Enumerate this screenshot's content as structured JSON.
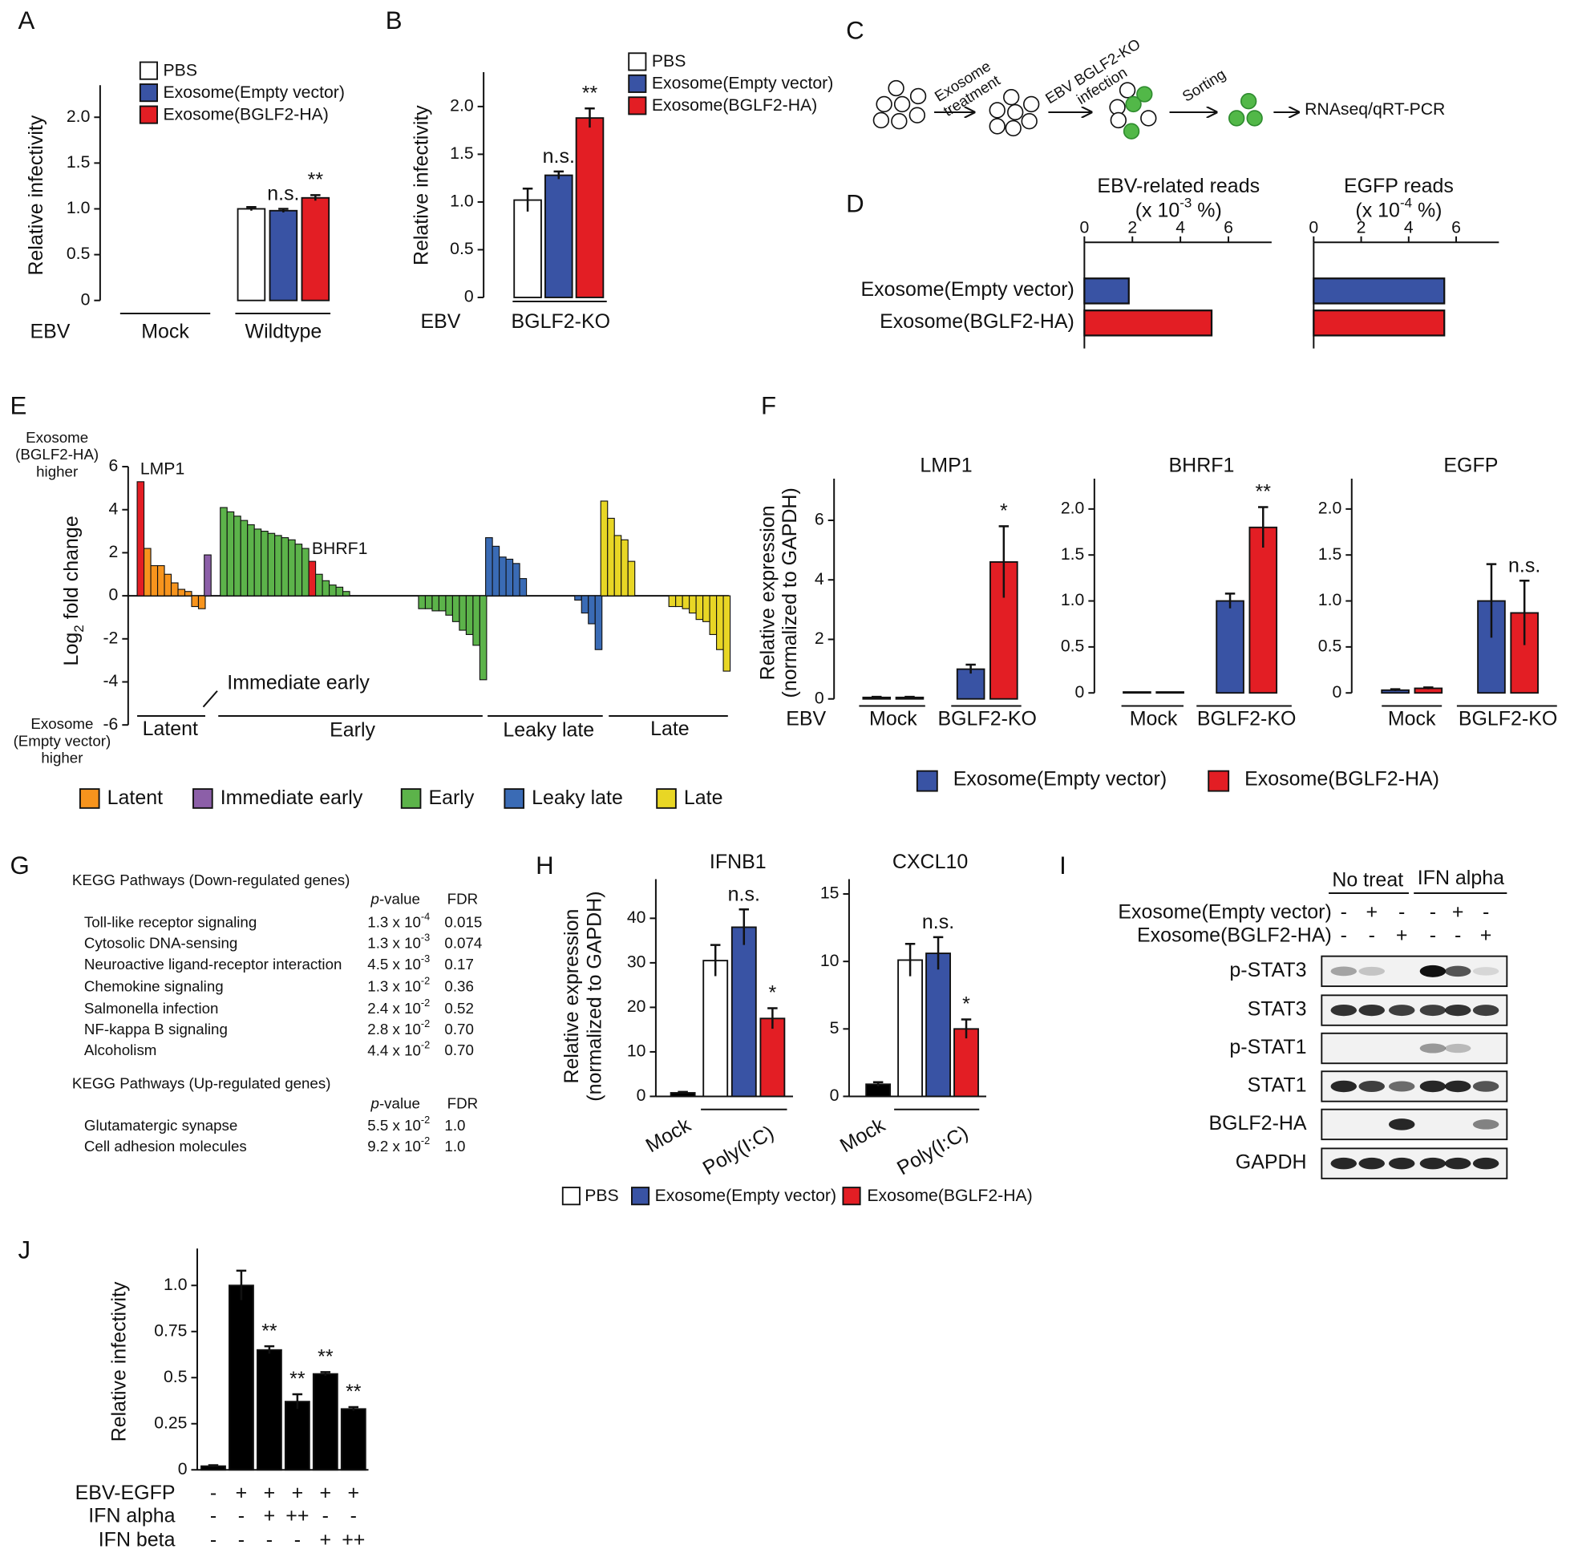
{
  "panel_labels": [
    "A",
    "B",
    "C",
    "D",
    "E",
    "F",
    "G",
    "H",
    "I",
    "J"
  ],
  "chart_data": [
    {
      "type": "bar",
      "ylabel": "Relative infectivity",
      "x_row_label": "EBV",
      "categories": [
        "Mock",
        "Wildtype"
      ],
      "ylim": [
        0,
        2.35
      ],
      "yticks": [
        0,
        0.5,
        {
          "value": 1,
          "label": "1.0"
        },
        1.5,
        {
          "value": 2,
          "label": "2.0"
        }
      ],
      "series": [
        {
          "name": "PBS",
          "color": "#ffffff",
          "values": [
            0,
            1.0
          ],
          "errors": [
            null,
            0.02
          ]
        },
        {
          "name": "Exosome(Empty vector)",
          "color": "#3953a4",
          "values": [
            0,
            0.98
          ],
          "errors": [
            null,
            0.02
          ],
          "annotations": [
            null,
            "n.s."
          ]
        },
        {
          "name": "Exosome(BGLF2-HA)",
          "color": "#e31e24",
          "values": [
            0,
            1.12
          ],
          "errors": [
            null,
            0.03
          ],
          "annotations": [
            null,
            "**"
          ]
        }
      ]
    },
    {
      "type": "bar",
      "ylabel": "Relative infectivity",
      "x_row_label": "EBV",
      "categories": [
        "BGLF2-KO"
      ],
      "ylim": [
        0,
        2.36
      ],
      "yticks": [
        0,
        0.5,
        {
          "value": 1,
          "label": "1.0"
        },
        1.5,
        {
          "value": 2,
          "label": "2.0"
        }
      ],
      "series": [
        {
          "name": "PBS",
          "color": "#ffffff",
          "values": [
            1.02
          ],
          "errors": [
            0.12
          ]
        },
        {
          "name": "Exosome(Empty vector)",
          "color": "#3953a4",
          "values": [
            1.28
          ],
          "errors": [
            0.04
          ],
          "annotations": [
            "n.s."
          ]
        },
        {
          "name": "Exosome(BGLF2-HA)",
          "color": "#e31e24",
          "values": [
            1.88
          ],
          "errors": [
            0.1
          ],
          "annotations": [
            "**"
          ]
        }
      ]
    },
    {
      "type": "hbar",
      "title": "EBV-related reads",
      "unit": [
        "(x 10",
        "-3",
        " %)"
      ],
      "categories": [
        "Exosome(Empty vector)",
        "Exosome(BGLF2-HA)"
      ],
      "values": [
        1.85,
        5.3
      ],
      "colors": [
        "#3953a4",
        "#e31e24"
      ],
      "xlim": [
        0,
        7.8
      ],
      "xticks": [
        0,
        2,
        4,
        6
      ]
    },
    {
      "type": "hbar",
      "title": "EGFP reads",
      "unit": [
        "(x 10",
        "-4",
        " %)"
      ],
      "values": [
        5.5,
        5.5
      ],
      "colors": [
        "#3953a4",
        "#e31e24"
      ],
      "xlim": [
        0,
        7.8
      ],
      "xticks": [
        0,
        2,
        4,
        6
      ]
    },
    {
      "type": "waterfall",
      "ylabel": [
        "Log",
        "2",
        " fold change"
      ],
      "ylim": [
        -6,
        6
      ],
      "yticks": [
        6,
        4,
        2,
        0,
        -2,
        -4,
        -6
      ],
      "upper_note": [
        "Exosome",
        "(BGLF2-HA)",
        "higher"
      ],
      "upper_note_color": "#e31e24",
      "lower_note": [
        "Exosome",
        "(Empty vector)",
        "higher"
      ],
      "lower_note_color": "#3953a4",
      "highlight_color": "#e31e24",
      "series": [
        {
          "name": "Latent",
          "color": "#f7941d",
          "values": [
            5.3,
            2.2,
            1.4,
            1.4,
            1.0,
            0.6,
            0.3,
            0.2,
            -0.5,
            -0.6
          ],
          "labels": [
            "LMP1",
            null,
            null,
            null,
            null,
            null,
            null,
            null,
            null,
            null
          ]
        },
        {
          "name": "Immediate early",
          "color": "#8c5fa8",
          "values": [
            1.9
          ]
        },
        {
          "name": "Early",
          "color": "#5cb34a",
          "values": [
            4.1,
            3.9,
            3.7,
            3.5,
            3.3,
            3.1,
            3.0,
            2.9,
            2.8,
            2.7,
            2.6,
            2.4,
            2.2,
            1.6,
            1.0,
            0.7,
            0.5,
            0.4,
            0.2,
            -0.6,
            -0.6,
            -0.7,
            -0.7,
            -0.9,
            -1.2,
            -1.6,
            -1.8,
            -2.3,
            -3.9
          ],
          "labels": [
            null,
            null,
            null,
            null,
            null,
            null,
            null,
            null,
            null,
            null,
            null,
            null,
            null,
            "BHRF1",
            null,
            null,
            null,
            null,
            null,
            null,
            null,
            null,
            null,
            null,
            null,
            null,
            null,
            null,
            null
          ]
        },
        {
          "name": "Leaky late",
          "color": "#3a6bb5",
          "values": [
            2.7,
            2.3,
            1.8,
            1.7,
            1.5,
            0.8,
            -0.2,
            -0.8,
            -1.3,
            -2.5
          ]
        },
        {
          "name": "Late",
          "color": "#e8d625",
          "values": [
            4.4,
            3.6,
            2.8,
            2.6,
            1.6,
            -0.5,
            -0.5,
            -0.6,
            -0.8,
            -1.1,
            -1.2,
            -1.8,
            -2.5,
            -3.5
          ]
        }
      ]
    },
    {
      "type": "bar",
      "title": "LMP1",
      "ylabel": [
        "Relative expression",
        "(normalized to GAPDH)"
      ],
      "x_row_label": "EBV",
      "categories": [
        "Mock",
        "BGLF2-KO"
      ],
      "ylim": [
        0,
        7.4
      ],
      "yticks": [
        0,
        2,
        4,
        6
      ],
      "series": [
        {
          "name": "Exosome(Empty vector)",
          "color": "#3953a4",
          "values": [
            0.05,
            1.0
          ],
          "errors": [
            0.02,
            0.15
          ]
        },
        {
          "name": "Exosome(BGLF2-HA)",
          "color": "#e31e24",
          "values": [
            0.05,
            4.6
          ],
          "errors": [
            0.02,
            1.2
          ],
          "annotations": [
            null,
            "*"
          ]
        }
      ]
    },
    {
      "type": "bar",
      "title": "BHRF1",
      "categories": [
        "Mock",
        "BGLF2-KO"
      ],
      "ylim": [
        0,
        2.33
      ],
      "yticks": [
        0,
        0.5,
        {
          "value": 1,
          "label": "1.0"
        },
        1.5,
        {
          "value": 2,
          "label": "2.0"
        }
      ],
      "series": [
        {
          "color": "#3953a4",
          "values": [
            0.01,
            1.0
          ],
          "errors": [
            null,
            0.08
          ]
        },
        {
          "color": "#e31e24",
          "values": [
            0.01,
            1.8
          ],
          "errors": [
            null,
            0.22
          ],
          "annotations": [
            null,
            "**"
          ]
        }
      ]
    },
    {
      "type": "bar",
      "title": "EGFP",
      "categories": [
        "Mock",
        "BGLF2-KO"
      ],
      "ylim": [
        0,
        2.33
      ],
      "yticks": [
        0,
        0.5,
        {
          "value": 1,
          "label": "1.0"
        },
        1.5,
        {
          "value": 2,
          "label": "2.0"
        }
      ],
      "series": [
        {
          "color": "#3953a4",
          "values": [
            0.03,
            1.0
          ],
          "errors": [
            0.01,
            0.4
          ]
        },
        {
          "color": "#e31e24",
          "values": [
            0.05,
            0.87
          ],
          "errors": [
            0.01,
            0.35
          ],
          "annotations": [
            null,
            "n.s."
          ]
        }
      ]
    },
    {
      "type": "bar",
      "title": "IFNB1",
      "ylabel": [
        "Relative expression",
        "(normalized to GAPDH)"
      ],
      "categories": [
        "Mock",
        "Poly(I:C)"
      ],
      "ylim": [
        0,
        48.8
      ],
      "yticks": [
        0,
        10,
        20,
        30,
        40
      ],
      "series": [
        {
          "name": "PBS",
          "color": "#ffffff",
          "point_colors": [
            "#000000",
            "#ffffff"
          ],
          "values": [
            0.8,
            30.5
          ],
          "errors": [
            0.2,
            3.5
          ]
        },
        {
          "name": "Exosome(Empty vector)",
          "color": "#3953a4",
          "values": [
            null,
            38
          ],
          "errors": [
            null,
            4
          ],
          "annotations": [
            null,
            "n.s."
          ]
        },
        {
          "name": "Exosome(BGLF2-HA)",
          "color": "#e31e24",
          "values": [
            null,
            17.5
          ],
          "errors": [
            null,
            2.3
          ],
          "annotations": [
            null,
            "*"
          ]
        }
      ]
    },
    {
      "type": "bar",
      "title": "CXCL10",
      "categories": [
        "Mock",
        "Poly(I:C)"
      ],
      "ylim": [
        0,
        16.1
      ],
      "yticks": [
        0,
        5,
        10,
        15
      ],
      "series": [
        {
          "color": "#ffffff",
          "point_colors": [
            "#000000",
            "#ffffff"
          ],
          "values": [
            0.9,
            10.1
          ],
          "errors": [
            0.15,
            1.2
          ]
        },
        {
          "color": "#3953a4",
          "values": [
            null,
            10.6
          ],
          "errors": [
            null,
            1.2
          ],
          "annotations": [
            null,
            "n.s."
          ]
        },
        {
          "color": "#e31e24",
          "values": [
            null,
            5.0
          ],
          "errors": [
            null,
            0.7
          ],
          "annotations": [
            null,
            "*"
          ]
        }
      ]
    },
    {
      "type": "bar",
      "ylabel": "Relative infectivity",
      "color": "#000000",
      "ylim": [
        0,
        1.2
      ],
      "yticks": [
        0,
        0.25,
        0.5,
        0.75,
        {
          "value": 1,
          "label": "1.0"
        }
      ],
      "values": [
        0.02,
        1.0,
        0.65,
        0.37,
        0.52,
        0.33
      ],
      "errors": [
        0.005,
        0.08,
        0.02,
        0.04,
        0.01,
        0.01
      ],
      "annotations": [
        null,
        null,
        "**",
        "**",
        "**",
        "**"
      ],
      "conditions": [
        {
          "label": "EBV-EGFP",
          "values": [
            "-",
            "+",
            "+",
            "+",
            "+",
            "+"
          ]
        },
        {
          "label": "IFN alpha",
          "values": [
            "-",
            "-",
            "+",
            "++",
            "-",
            "-"
          ]
        },
        {
          "label": "IFN beta",
          "values": [
            "-",
            "-",
            "-",
            "-",
            "+",
            "++"
          ]
        }
      ]
    }
  ],
  "diagram": {
    "steps": [
      [
        "Exosome",
        "treatment"
      ],
      [
        "EBV BGLF2-KO",
        "infection"
      ],
      [
        "Sorting"
      ]
    ],
    "output": "RNAseq/qRT-PCR"
  },
  "table": {
    "sections": [
      {
        "title": "KEGG Pathways (Down-regulated genes)",
        "p_italic": "p",
        "p_rest": "-value",
        "fdr_header": "FDR",
        "rows": [
          {
            "pathway": "Toll-like receptor signaling",
            "p_base": "1.3 x 10",
            "p_exp": "-4",
            "fdr": "0.015",
            "color": "#e31e24"
          },
          {
            "pathway": "Cytosolic DNA-sensing",
            "p_base": "1.3 x 10",
            "p_exp": "-3",
            "fdr": "0.074",
            "color": "#e31e24"
          },
          {
            "pathway": "Neuroactive ligand-receptor interaction",
            "p_base": "4.5 x 10",
            "p_exp": "-3",
            "fdr": "0.17"
          },
          {
            "pathway": "Chemokine signaling",
            "p_base": "1.3 x 10",
            "p_exp": "-2",
            "fdr": "0.36"
          },
          {
            "pathway": "Salmonella infection",
            "p_base": "2.4 x 10",
            "p_exp": "-2",
            "fdr": "0.52"
          },
          {
            "pathway": "NF-kappa B signaling",
            "p_base": "2.8 x 10",
            "p_exp": "-2",
            "fdr": "0.70"
          },
          {
            "pathway": "Alcoholism",
            "p_base": "4.4 x 10",
            "p_exp": "-2",
            "fdr": "0.70"
          }
        ]
      },
      {
        "title": "KEGG Pathways (Up-regulated genes)",
        "p_italic": "p",
        "p_rest": "-value",
        "fdr_header": "FDR",
        "rows": [
          {
            "pathway": "Glutamatergic synapse",
            "p_base": "5.5 x 10",
            "p_exp": "-2",
            "fdr": "1.0"
          },
          {
            "pathway": "Cell adhesion molecules",
            "p_base": "9.2 x 10",
            "p_exp": "-2",
            "fdr": "1.0"
          }
        ]
      }
    ]
  },
  "blot": {
    "group_labels": [
      "No treat",
      "IFN alpha"
    ],
    "treatments": [
      {
        "label": "Exosome(Empty vector)",
        "signs": [
          "-",
          "+",
          "-",
          "-",
          "+",
          "-"
        ]
      },
      {
        "label": "Exosome(BGLF2-HA)",
        "signs": [
          "-",
          "-",
          "+",
          "-",
          "-",
          "+"
        ]
      }
    ],
    "bands": [
      "p-STAT3",
      "STAT3",
      "p-STAT1",
      "STAT1",
      "BGLF2-HA",
      "GAPDH"
    ]
  }
}
